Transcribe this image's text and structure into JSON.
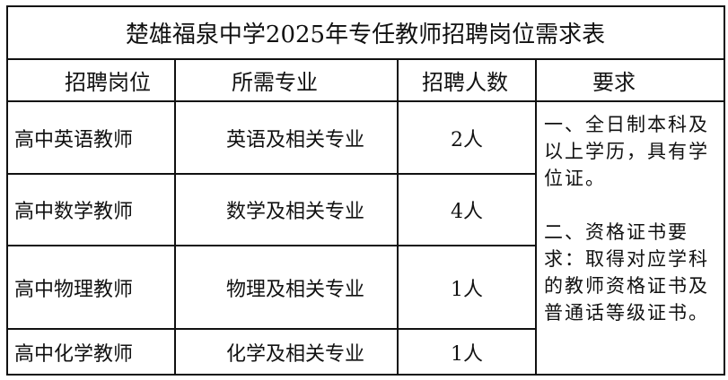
{
  "title": "楚雄福泉中学2025年专任教师招聘岗位需求表",
  "headers": [
    "招聘岗位",
    "所需专业",
    "招聘人数",
    "要求"
  ],
  "rows": [
    {
      "position": "高中英语教师",
      "major": "英语及相关专业",
      "count": "2人"
    },
    {
      "position": "高中数学教师",
      "major": "数学及相关专业",
      "count": "4人"
    },
    {
      "position": "高中物理教师",
      "major": "物理及相关专业",
      "count": "1人"
    },
    {
      "position": "高中化学教师",
      "major": "化学及相关专业",
      "count": "1人"
    }
  ],
  "requirements": [
    "一、全日制本科及以上学历，具有学位证。",
    "二、资格证书要求：取得对应学科的教师资格证书及普通话等级证书。"
  ]
}
